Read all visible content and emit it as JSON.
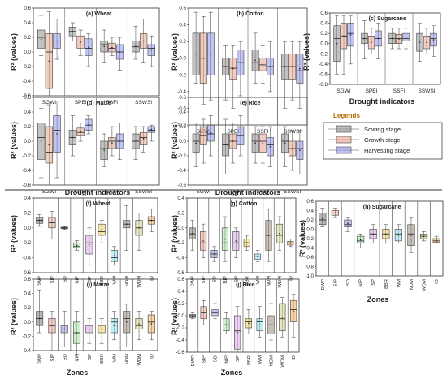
{
  "figure": {
    "ylabel": "R² (values)",
    "xlabel_indicators": "Drought indicators",
    "xlabel_zones": "Zones",
    "legend": {
      "title": "Legends",
      "items": [
        {
          "label": "Sowing stage",
          "color": "#8f8f8f"
        },
        {
          "label": "Growth stage",
          "color": "#e8a48e"
        },
        {
          "label": "Harvesting stage",
          "color": "#8f96e8"
        }
      ]
    }
  },
  "chart_data": [
    {
      "type": "boxplot",
      "title": "(a) Wheat",
      "ylim": [
        -0.6,
        0.6
      ],
      "yticks": [
        "-0.6",
        "-0.4",
        "-0.2",
        "0.0",
        "0.2",
        "0.4",
        "0.6"
      ],
      "categories": [
        "SGWI",
        "SPEI",
        "SSFI",
        "SSWSI"
      ],
      "series_names": [
        "Sowing stage",
        "Growth stage",
        "Harvesting stage"
      ],
      "boxes": [
        [
          [
            -0.05,
            0.05,
            0.2,
            0.3,
            0.5
          ],
          [
            -0.6,
            -0.5,
            0.0,
            0.25,
            0.55
          ],
          [
            -0.1,
            0.05,
            0.15,
            0.25,
            0.45
          ]
        ],
        [
          [
            0.15,
            0.22,
            0.28,
            0.34,
            0.4
          ],
          [
            -0.05,
            0.05,
            0.15,
            0.22,
            0.3
          ],
          [
            -0.2,
            -0.05,
            0.05,
            0.18,
            0.25
          ]
        ],
        [
          [
            -0.15,
            0.0,
            0.1,
            0.15,
            0.3
          ],
          [
            -0.05,
            0.0,
            0.05,
            0.12,
            0.2
          ],
          [
            -0.25,
            -0.1,
            0.0,
            0.1,
            0.2
          ]
        ],
        [
          [
            -0.1,
            0.0,
            0.07,
            0.15,
            0.35
          ],
          [
            -0.15,
            0.05,
            0.15,
            0.25,
            0.45
          ],
          [
            -0.2,
            -0.05,
            0.05,
            0.1,
            0.22
          ]
        ]
      ]
    },
    {
      "type": "boxplot",
      "title": "(b) Cotton",
      "ylim": [
        -0.8,
        0.6
      ],
      "yticks": [
        "-0.8",
        "-0.6",
        "-0.4",
        "-0.2",
        "0.0",
        "0.2",
        "0.4",
        "0.6"
      ],
      "categories": [
        "SGWI",
        "SPEI",
        "SSFI",
        "SSWSI"
      ],
      "series_names": [
        "Sowing stage",
        "Growth stage",
        "Harvesting stage"
      ],
      "boxes": [
        [
          [
            -0.3,
            -0.2,
            0.05,
            0.3,
            0.55
          ],
          [
            -0.55,
            -0.3,
            0.0,
            0.3,
            0.5
          ],
          [
            -0.5,
            -0.2,
            0.05,
            0.3,
            0.55
          ]
        ],
        [
          [
            -0.5,
            -0.2,
            -0.1,
            0.0,
            0.15
          ],
          [
            -0.6,
            -0.25,
            -0.12,
            0.0,
            0.15
          ],
          [
            -0.45,
            -0.2,
            -0.05,
            0.1,
            0.2
          ]
        ],
        [
          [
            -0.3,
            -0.15,
            -0.05,
            0.1,
            0.3
          ],
          [
            -0.3,
            -0.15,
            -0.08,
            0.0,
            0.15
          ],
          [
            -0.4,
            -0.2,
            -0.1,
            0.0,
            0.2
          ]
        ],
        [
          [
            -0.6,
            -0.25,
            -0.1,
            0.05,
            0.2
          ],
          [
            -0.5,
            -0.25,
            -0.1,
            0.05,
            0.2
          ],
          [
            -0.6,
            -0.3,
            -0.15,
            0.05,
            0.2
          ]
        ]
      ]
    },
    {
      "type": "boxplot",
      "title": "(c) Sugarcane",
      "ylim": [
        -0.8,
        0.6
      ],
      "yticks": [
        "-0.8",
        "-0.6",
        "-0.4",
        "-0.2",
        "0.0",
        "0.2",
        "0.4",
        "0.6"
      ],
      "categories": [
        "SGWI",
        "SPEI",
        "SSFI",
        "SSWSI"
      ],
      "series_names": [
        "Sowing stage",
        "Growth stage",
        "Harvesting stage"
      ],
      "boxes": [
        [
          [
            -0.6,
            -0.35,
            0.1,
            0.35,
            0.55
          ],
          [
            -0.6,
            -0.1,
            0.15,
            0.4,
            0.55
          ],
          [
            -0.4,
            -0.05,
            0.2,
            0.4,
            0.55
          ]
        ],
        [
          [
            -0.3,
            0.0,
            0.1,
            0.2,
            0.45
          ],
          [
            -0.2,
            -0.1,
            0.05,
            0.15,
            0.3
          ],
          [
            -0.3,
            -0.05,
            0.1,
            0.25,
            0.4
          ]
        ],
        [
          [
            -0.1,
            0.0,
            0.1,
            0.2,
            0.3
          ],
          [
            -0.1,
            0.0,
            0.1,
            0.18,
            0.3
          ],
          [
            -0.1,
            0.05,
            0.1,
            0.2,
            0.3
          ]
        ],
        [
          [
            -0.35,
            -0.15,
            0.05,
            0.2,
            0.4
          ],
          [
            -0.2,
            -0.1,
            0.05,
            0.15,
            0.3
          ],
          [
            -0.25,
            -0.05,
            0.1,
            0.2,
            0.35
          ]
        ]
      ]
    },
    {
      "type": "boxplot",
      "title": "(d) Maize",
      "ylim": [
        -0.6,
        0.6
      ],
      "yticks": [
        "-0.6",
        "-0.4",
        "-0.2",
        "0.0",
        "0.2",
        "0.4",
        "0.6"
      ],
      "categories": [
        "SGWI",
        "SPEI",
        "SSFI",
        "SSWSI"
      ],
      "series_names": [
        "Sowing stage",
        "Growth stage",
        "Harvesting stage"
      ],
      "boxes": [
        [
          [
            -0.5,
            -0.25,
            0.05,
            0.25,
            0.45
          ],
          [
            -0.6,
            -0.3,
            -0.15,
            0.2,
            0.5
          ],
          [
            -0.5,
            -0.15,
            0.15,
            0.35,
            0.55
          ]
        ],
        [
          [
            -0.2,
            -0.05,
            0.05,
            0.15,
            0.35
          ],
          [
            0.0,
            0.08,
            0.12,
            0.18,
            0.25
          ],
          [
            0.1,
            0.15,
            0.22,
            0.3,
            0.35
          ]
        ],
        [
          [
            -0.35,
            -0.25,
            -0.1,
            0.0,
            0.1
          ],
          [
            -0.2,
            -0.1,
            0.0,
            0.05,
            0.2
          ],
          [
            -0.25,
            -0.1,
            0.0,
            0.1,
            0.25
          ]
        ],
        [
          [
            -0.25,
            -0.1,
            0.0,
            0.1,
            0.2
          ],
          [
            -0.15,
            -0.05,
            0.05,
            0.12,
            0.2
          ],
          [
            0.0,
            0.12,
            0.15,
            0.2,
            0.22
          ]
        ]
      ]
    },
    {
      "type": "boxplot",
      "title": "(e) Rice",
      "ylim": [
        -0.6,
        0.6
      ],
      "yticks": [
        "-0.6",
        "-0.4",
        "-0.2",
        "0.0",
        "0.2",
        "0.4",
        "0.6"
      ],
      "categories": [
        "SGWI",
        "SPEI",
        "SSFI",
        "SSWSI"
      ],
      "series_names": [
        "Sowing stage",
        "Growth stage",
        "Harvesting stage"
      ],
      "boxes": [
        [
          [
            -0.35,
            -0.15,
            0.0,
            0.1,
            0.25
          ],
          [
            -0.3,
            -0.05,
            0.08,
            0.2,
            0.3
          ],
          [
            -0.2,
            0.0,
            0.1,
            0.22,
            0.35
          ]
        ],
        [
          [
            -0.45,
            -0.2,
            -0.05,
            0.1,
            0.3
          ],
          [
            -0.3,
            -0.1,
            0.0,
            0.1,
            0.25
          ],
          [
            -0.2,
            -0.05,
            0.08,
            0.2,
            0.35
          ]
        ],
        [
          [
            -0.3,
            -0.15,
            0.0,
            0.1,
            0.2
          ],
          [
            -0.3,
            -0.15,
            0.0,
            0.1,
            0.2
          ],
          [
            -0.35,
            -0.2,
            -0.05,
            0.05,
            0.2
          ]
        ],
        [
          [
            -0.35,
            -0.15,
            0.0,
            0.1,
            0.2
          ],
          [
            -0.4,
            -0.2,
            -0.1,
            0.0,
            0.15
          ],
          [
            -0.45,
            -0.25,
            -0.1,
            0.0,
            0.15
          ]
        ]
      ]
    },
    {
      "type": "boxplot",
      "title": "(f) Wheat",
      "ylim": [
        -0.6,
        0.4
      ],
      "yticks": [
        "-0.6",
        "-0.4",
        "-0.2",
        "0.0",
        "0.2",
        "0.4"
      ],
      "categories": [
        "DWP",
        "SIP",
        "SD",
        "NIP",
        "SP",
        "BBR",
        "WM",
        "NDM",
        "WDM",
        "ID"
      ],
      "colors": [
        "#7a7a7a",
        "#e8a48e",
        "#8f96e8",
        "#a6e0a6",
        "#d9a6e8",
        "#f0d060",
        "#90e0f0",
        "#9a8a80",
        "#d6d68a",
        "#f0b060"
      ],
      "boxes": [
        [
          0.02,
          0.06,
          0.1,
          0.14,
          0.18
        ],
        [
          -0.15,
          0.0,
          0.07,
          0.14,
          0.22
        ],
        [
          -0.02,
          -0.01,
          0.0,
          0.01,
          0.02
        ],
        [
          -0.3,
          -0.27,
          -0.25,
          -0.2,
          -0.17
        ],
        [
          -0.5,
          -0.35,
          -0.2,
          -0.1,
          0.0
        ],
        [
          -0.2,
          -0.1,
          -0.05,
          0.05,
          0.1
        ],
        [
          -0.5,
          -0.45,
          -0.4,
          -0.3,
          -0.25
        ],
        [
          -0.3,
          0.0,
          0.05,
          0.1,
          0.3
        ],
        [
          -0.3,
          -0.1,
          0.0,
          0.1,
          0.2
        ],
        [
          -0.05,
          0.05,
          0.1,
          0.15,
          0.25
        ]
      ]
    },
    {
      "type": "boxplot",
      "title": "(g) Cotton",
      "ylim": [
        -0.6,
        0.4
      ],
      "yticks": [
        "-0.6",
        "-0.4",
        "-0.2",
        "0.0",
        "0.2",
        "0.4"
      ],
      "categories": [
        "DWP",
        "SIP",
        "SD",
        "NIP",
        "SP",
        "BBR",
        "WM",
        "NDM",
        "WDM",
        "ID"
      ],
      "colors": [
        "#7a7a7a",
        "#e8a48e",
        "#8f96e8",
        "#a6e0a6",
        "#d9a6e8",
        "#f0d060",
        "#90e0f0",
        "#9a8a80",
        "#d6d68a",
        "#f0b060"
      ],
      "boxes": [
        [
          -0.3,
          -0.15,
          -0.08,
          0.0,
          0.1
        ],
        [
          -0.4,
          -0.3,
          -0.2,
          -0.05,
          0.05
        ],
        [
          -0.45,
          -0.4,
          -0.35,
          -0.3,
          -0.25
        ],
        [
          -0.45,
          -0.3,
          -0.2,
          0.0,
          0.15
        ],
        [
          -0.4,
          -0.3,
          -0.2,
          -0.05,
          0.0
        ],
        [
          -0.3,
          -0.25,
          -0.2,
          -0.15,
          -0.1
        ],
        [
          -0.45,
          -0.42,
          -0.38,
          -0.35,
          -0.3
        ],
        [
          -0.45,
          -0.3,
          -0.1,
          0.1,
          0.25
        ],
        [
          -0.3,
          -0.2,
          -0.1,
          0.05,
          0.15
        ],
        [
          -0.25,
          -0.23,
          -0.2,
          -0.18,
          -0.15
        ]
      ]
    },
    {
      "type": "boxplot",
      "title": "(h) Sugarcane",
      "ylim": [
        -1.0,
        0.6
      ],
      "yticks": [
        "-1.0",
        "-0.8",
        "-0.6",
        "-0.4",
        "-0.2",
        "0.0",
        "0.2",
        "0.4",
        "0.6"
      ],
      "categories": [
        "DWP",
        "SIP",
        "SD",
        "NIP",
        "SP",
        "BBR",
        "WM",
        "NDM",
        "WDM",
        "ID"
      ],
      "colors": [
        "#7a7a7a",
        "#e8a48e",
        "#8f96e8",
        "#a6e0a6",
        "#d9a6e8",
        "#f0d060",
        "#90e0f0",
        "#9a8a80",
        "#d6d68a",
        "#f0b060"
      ],
      "boxes": [
        [
          0.05,
          0.1,
          0.2,
          0.35,
          0.45
        ],
        [
          0.25,
          0.3,
          0.35,
          0.4,
          0.45
        ],
        [
          -0.05,
          0.05,
          0.1,
          0.2,
          0.25
        ],
        [
          -0.4,
          -0.3,
          -0.25,
          -0.15,
          -0.1
        ],
        [
          -0.3,
          -0.2,
          -0.1,
          0.0,
          0.1
        ],
        [
          -0.3,
          -0.2,
          -0.1,
          0.0,
          0.1
        ],
        [
          -0.3,
          -0.25,
          -0.1,
          0.0,
          0.1
        ],
        [
          -0.5,
          -0.35,
          -0.1,
          0.1,
          0.25
        ],
        [
          -0.25,
          -0.2,
          -0.15,
          -0.1,
          -0.05
        ],
        [
          -0.3,
          -0.28,
          -0.25,
          -0.2,
          -0.15
        ]
      ]
    },
    {
      "type": "boxplot",
      "title": "(i) Maize",
      "ylim": [
        -0.4,
        0.6
      ],
      "yticks": [
        "-0.4",
        "-0.2",
        "0.0",
        "0.2",
        "0.4",
        "0.6"
      ],
      "categories": [
        "DWP",
        "SIP",
        "SD",
        "NIP",
        "SP",
        "BBR",
        "WM",
        "NDM",
        "WDM",
        "ID"
      ],
      "colors": [
        "#7a7a7a",
        "#e8a48e",
        "#8f96e8",
        "#a6e0a6",
        "#d9a6e8",
        "#f0d060",
        "#90e0f0",
        "#9a8a80",
        "#d6d68a",
        "#f0b060"
      ],
      "boxes": [
        [
          -0.15,
          -0.05,
          0.05,
          0.15,
          0.45
        ],
        [
          -0.4,
          -0.15,
          -0.05,
          0.05,
          0.15
        ],
        [
          -0.35,
          -0.15,
          -0.1,
          -0.05,
          0.15
        ],
        [
          -0.45,
          -0.3,
          -0.15,
          0.0,
          0.15
        ],
        [
          -0.3,
          -0.15,
          -0.1,
          -0.05,
          0.05
        ],
        [
          -0.3,
          -0.15,
          -0.1,
          -0.05,
          0.05
        ],
        [
          -0.25,
          -0.15,
          0.0,
          0.05,
          0.15
        ],
        [
          -0.35,
          -0.15,
          0.05,
          0.15,
          0.25
        ],
        [
          -0.25,
          -0.1,
          -0.05,
          0.05,
          0.15
        ],
        [
          -0.25,
          -0.15,
          0.0,
          0.1,
          0.15
        ]
      ]
    },
    {
      "type": "boxplot",
      "title": "(j) Rice",
      "ylim": [
        -0.6,
        0.6
      ],
      "yticks": [
        "-0.6",
        "-0.4",
        "-0.2",
        "0.0",
        "0.2",
        "0.4",
        "0.6"
      ],
      "categories": [
        "DWP",
        "SIP",
        "SD",
        "NIP",
        "SP",
        "BBR",
        "WM",
        "NDM",
        "WDM",
        "ID"
      ],
      "colors": [
        "#7a7a7a",
        "#e8a48e",
        "#8f96e8",
        "#a6e0a6",
        "#d9a6e8",
        "#f0d060",
        "#90e0f0",
        "#9a8a80",
        "#d6d68a",
        "#f0b060"
      ],
      "boxes": [
        [
          -0.05,
          -0.03,
          0.0,
          0.02,
          0.05
        ],
        [
          -0.15,
          -0.05,
          0.05,
          0.15,
          0.25
        ],
        [
          -0.05,
          0.0,
          0.05,
          0.1,
          0.2
        ],
        [
          -0.3,
          -0.25,
          -0.15,
          -0.05,
          0.05
        ],
        [
          -0.6,
          -0.55,
          -0.25,
          0.0,
          0.15
        ],
        [
          -0.3,
          -0.2,
          -0.1,
          -0.05,
          0.1
        ],
        [
          -0.35,
          -0.25,
          -0.1,
          -0.05,
          0.15
        ],
        [
          -0.4,
          -0.3,
          -0.15,
          0.0,
          0.2
        ],
        [
          -0.35,
          -0.25,
          -0.05,
          0.2,
          0.3
        ],
        [
          -0.35,
          -0.1,
          0.1,
          0.25,
          0.35
        ]
      ]
    }
  ]
}
